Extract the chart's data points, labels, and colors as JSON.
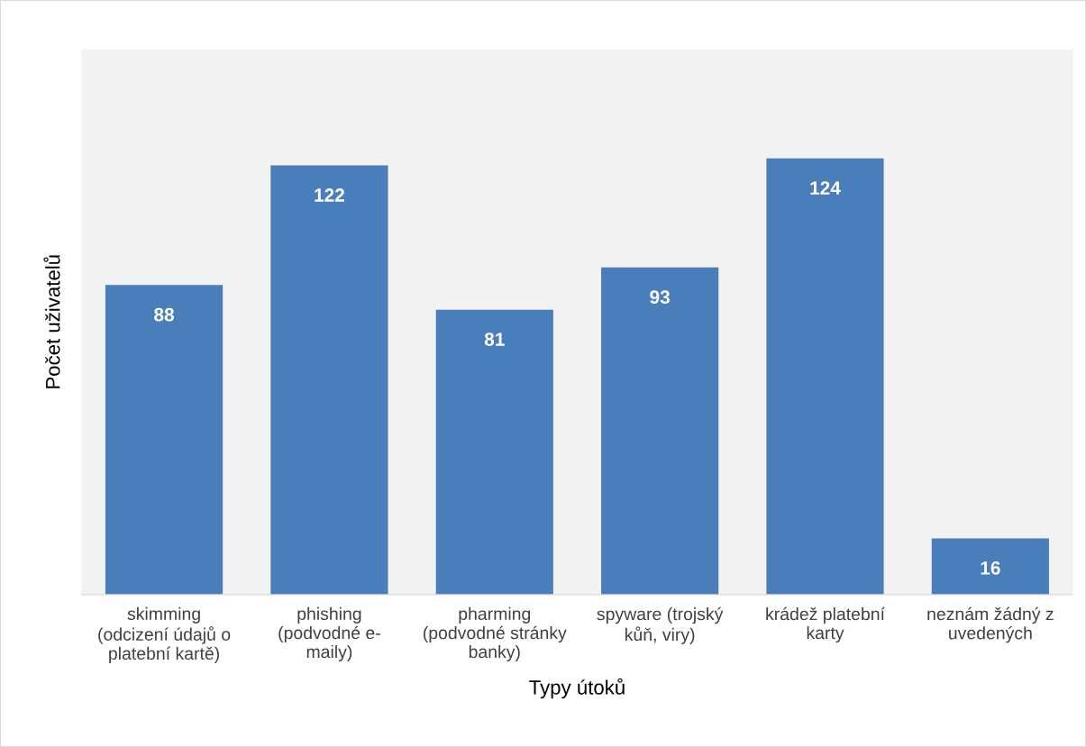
{
  "chart_data": {
    "type": "bar",
    "xlabel": "Typy útoků",
    "ylabel": "Počet uživatelů",
    "categories": [
      "skimming\n(odcizení údajů o\nplatební kartě)",
      "phishing\n(podvodné e-\nmaily)",
      "pharming\n(podvodné stránky\nbanky)",
      "spyware (trojský\nkůň, viry)",
      "krádež platební\nkarty",
      "neznám žádný z\nuvedených"
    ],
    "values": [
      88,
      122,
      81,
      93,
      124,
      16
    ],
    "color": "#4a7ebb",
    "data_labels": true,
    "grid": false,
    "legend": false,
    "tick_labels": "x"
  }
}
